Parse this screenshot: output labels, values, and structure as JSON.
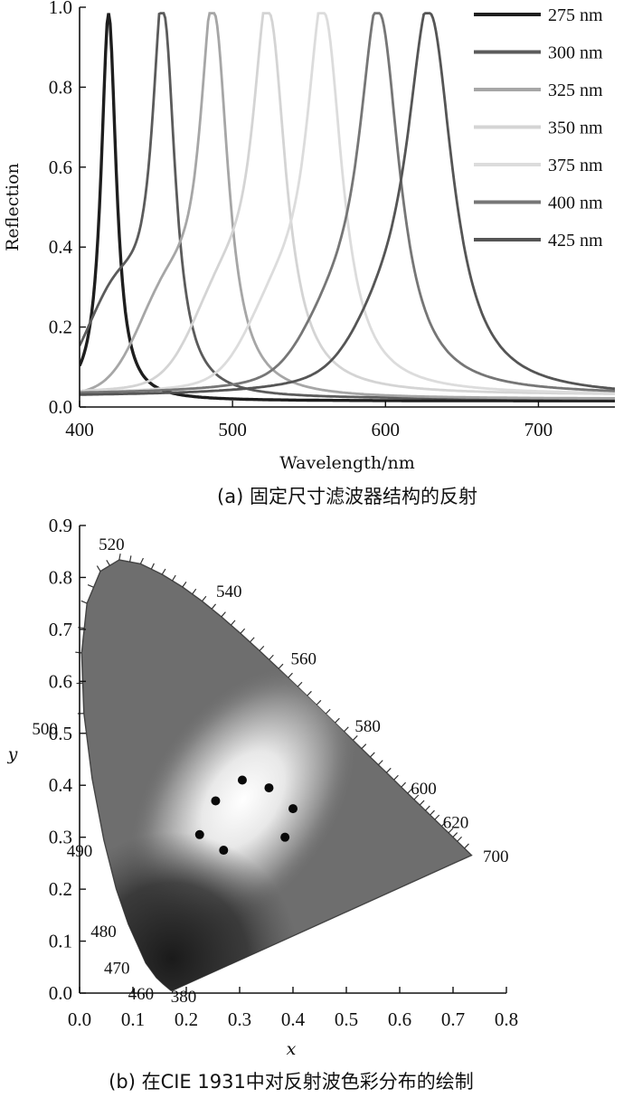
{
  "chart_data": [
    {
      "type": "line",
      "caption": "(a) 固定尺寸滤波器结构的反射",
      "xlabel": "Wavelength/nm",
      "ylabel": "Reflection",
      "xlim": [
        400,
        750
      ],
      "ylim": [
        0,
        1.0
      ],
      "xticks": [
        "400",
        "500",
        "600",
        "700"
      ],
      "yticks": [
        "0.0",
        "0.2",
        "0.4",
        "0.6",
        "0.8",
        "1.0"
      ],
      "legend_position": "top-right",
      "series": [
        {
          "name": "275 nm",
          "color": "#1e1e1e",
          "peak": 419,
          "width": 6,
          "base": 0.015,
          "shoulder": 0.0
        },
        {
          "name": "300 nm",
          "color": "#5b5b5b",
          "peak": 455,
          "width": 9,
          "base": 0.02,
          "shoulder": 0.24
        },
        {
          "name": "325 nm",
          "color": "#a6a6a6",
          "peak": 488,
          "width": 11,
          "base": 0.02,
          "shoulder": 0.22
        },
        {
          "name": "350 nm",
          "color": "#d4d4d4",
          "peak": 524,
          "width": 13,
          "base": 0.03,
          "shoulder": 0.2
        },
        {
          "name": "375 nm",
          "color": "#dcdcdc",
          "peak": 560,
          "width": 14,
          "base": 0.03,
          "shoulder": 0.17
        },
        {
          "name": "400 nm",
          "color": "#767676",
          "peak": 596,
          "width": 16,
          "base": 0.03,
          "shoulder": 0.12
        },
        {
          "name": "425 nm",
          "color": "#555555",
          "peak": 629,
          "width": 18,
          "base": 0.025,
          "shoulder": 0.1
        }
      ]
    },
    {
      "type": "scatter",
      "caption": "(b) 在CIE 1931中对反射波色彩分布的绘制",
      "xlabel": "x",
      "ylabel": "y",
      "xlim": [
        0.0,
        0.8
      ],
      "ylim": [
        0.0,
        0.9
      ],
      "xticks": [
        "0.0",
        "0.1",
        "0.2",
        "0.3",
        "0.4",
        "0.5",
        "0.6",
        "0.7",
        "0.8"
      ],
      "yticks": [
        "0.0",
        "0.1",
        "0.2",
        "0.3",
        "0.4",
        "0.5",
        "0.6",
        "0.7",
        "0.8",
        "0.9"
      ],
      "wavelength_labels": [
        "380",
        "460",
        "470",
        "480",
        "490",
        "500",
        "520",
        "540",
        "560",
        "580",
        "600",
        "620",
        "700"
      ],
      "points": [
        {
          "x": 0.225,
          "y": 0.305
        },
        {
          "x": 0.255,
          "y": 0.37
        },
        {
          "x": 0.27,
          "y": 0.275
        },
        {
          "x": 0.305,
          "y": 0.41
        },
        {
          "x": 0.355,
          "y": 0.395
        },
        {
          "x": 0.4,
          "y": 0.355
        },
        {
          "x": 0.385,
          "y": 0.3
        }
      ]
    }
  ]
}
